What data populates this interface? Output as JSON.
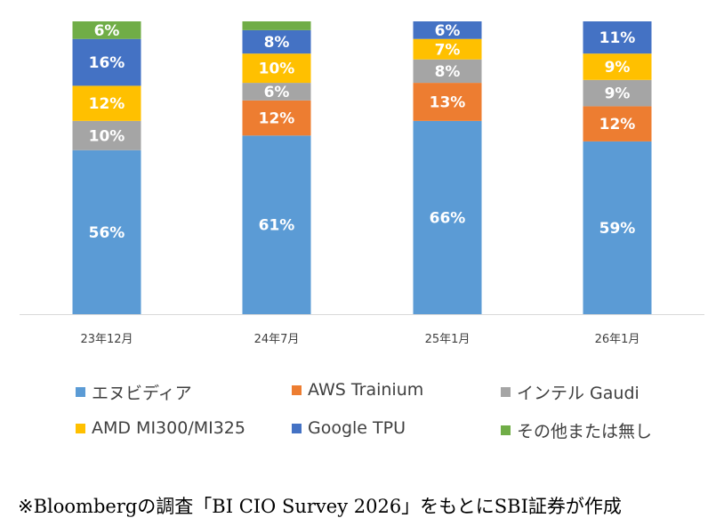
{
  "chart_data": {
    "type": "bar",
    "stacked": true,
    "categories": [
      "23年12月",
      "24年7月",
      "25年1月",
      "26年1月"
    ],
    "series": [
      {
        "name": "エヌビディア",
        "color": "#5b9bd5",
        "values": [
          56,
          61,
          66,
          59
        ]
      },
      {
        "name": "AWS Trainium",
        "color": "#ed7d31",
        "values": [
          0,
          12,
          13,
          12
        ]
      },
      {
        "name": "インテル Gaudi",
        "color": "#a5a5a5",
        "values": [
          10,
          6,
          8,
          9
        ]
      },
      {
        "name": "AMD MI300/MI325",
        "color": "#ffc000",
        "values": [
          12,
          10,
          7,
          9
        ]
      },
      {
        "name": "Google TPU",
        "color": "#4472c4",
        "values": [
          16,
          8,
          6,
          11
        ]
      },
      {
        "name": "その他または無し",
        "color": "#70ad47",
        "values": [
          6,
          3,
          0,
          0
        ]
      }
    ],
    "ylim": [
      0,
      100
    ],
    "grid": false,
    "legend_position": "bottom"
  },
  "footnote": "※Bloombergの調査「BI CIO Survey 2026」をもとにSBI証券が作成"
}
